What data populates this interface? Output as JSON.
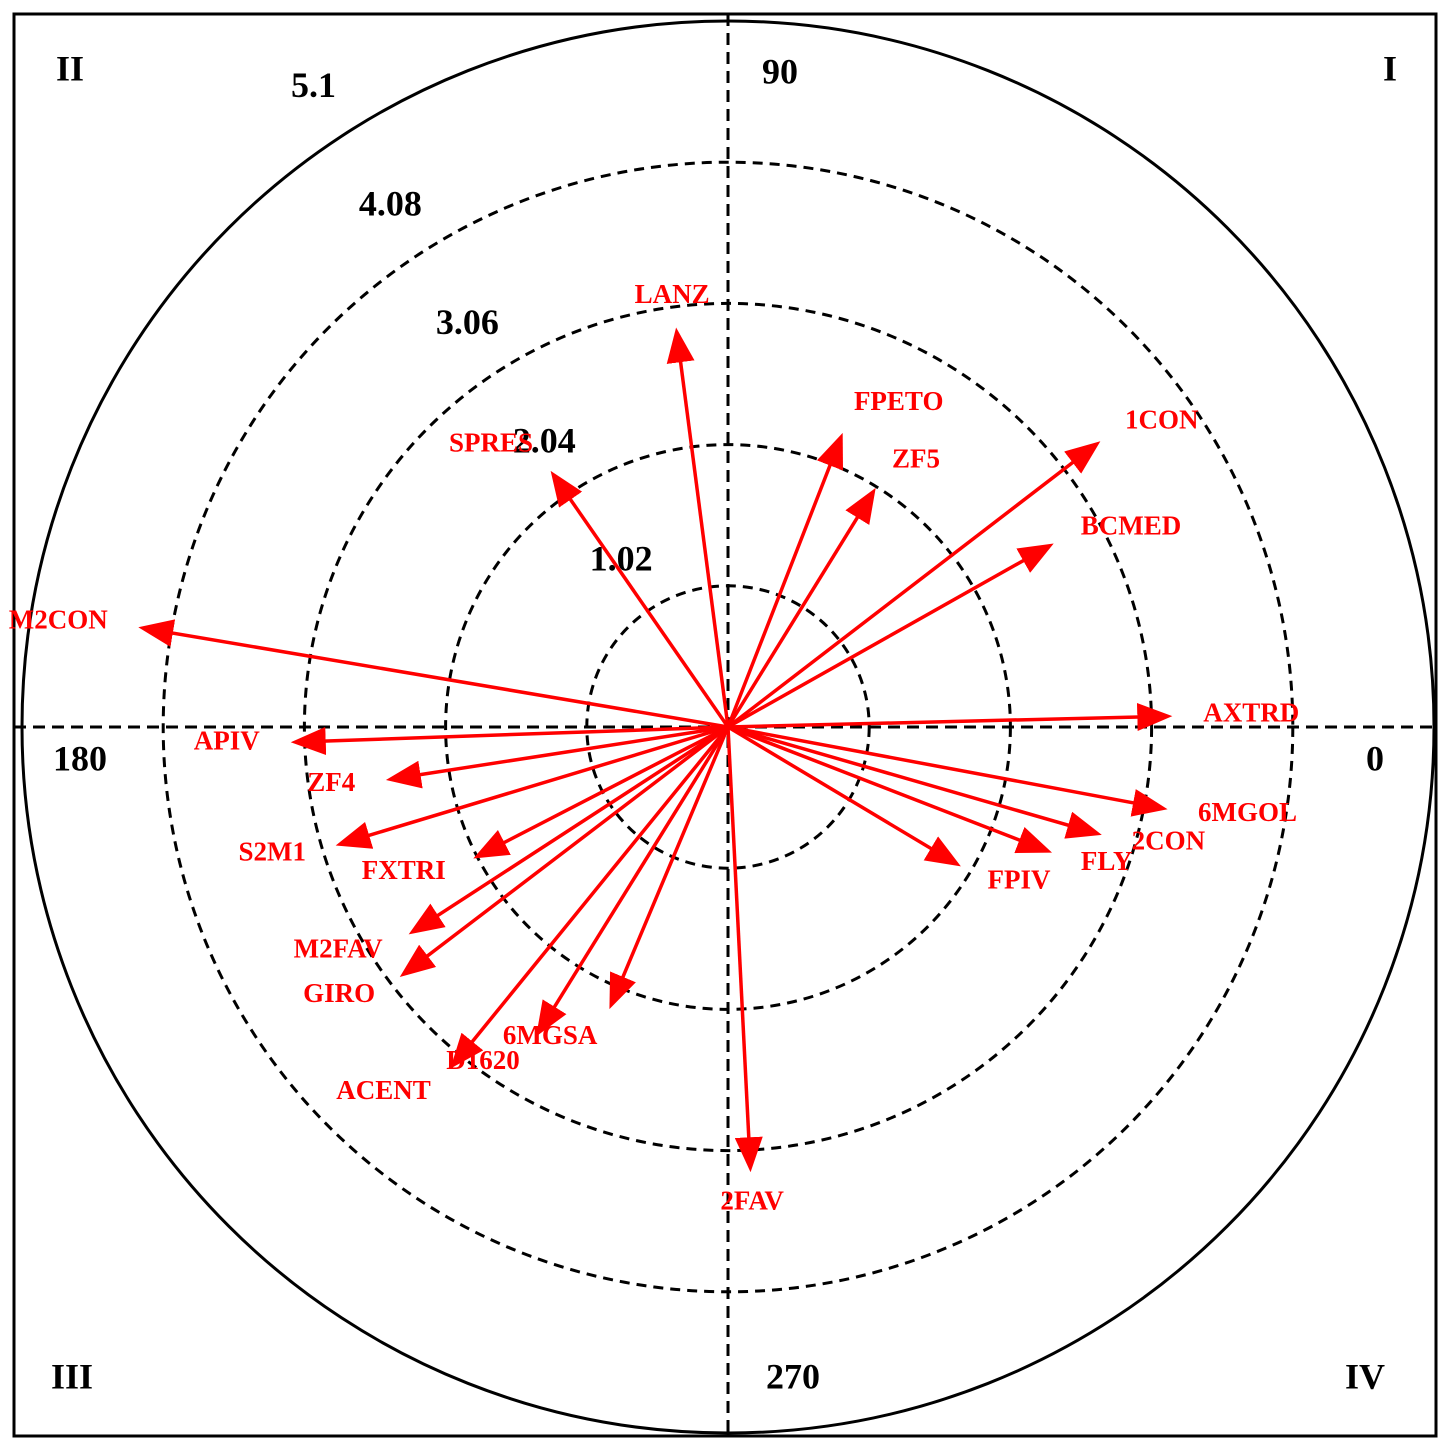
{
  "chart_data": {
    "type": "polar-vector",
    "categories": [
      "LANZ",
      "SPRES",
      "FPETO",
      "ZF5",
      "1CON",
      "BCMED",
      "AXTRD",
      "6MGOL",
      "2CON",
      "FLY",
      "FPIV",
      "2FAV",
      "6MGSA",
      "D1620",
      "ACENT",
      "GIRO",
      "M2FAV",
      "FXTRI",
      "S2M1",
      "ZF4",
      "APIV",
      "M2CON"
    ],
    "angles": [
      97.4,
      124.7,
      68.7,
      58.3,
      37.5,
      29.4,
      1.4,
      349.4,
      343.9,
      338.8,
      329.1,
      272.9,
      247.2,
      238.2,
      230.9,
      217.3,
      213.0,
      207.3,
      196.8,
      188.8,
      182.0,
      170.4
    ],
    "values": [
      2.86,
      2.2,
      2.23,
      1.98,
      3.34,
      2.65,
      3.16,
      3.18,
      2.76,
      2.46,
      1.91,
      3.17,
      2.16,
      2.58,
      3.13,
      2.93,
      2.7,
      2.02,
      2.91,
      2.45,
      3.11,
      4.27
    ],
    "color": "#ff0000",
    "rlim": [
      0,
      5.1
    ],
    "rticks": [
      1.02,
      2.04,
      3.06,
      4.08,
      5.1
    ],
    "thetaticks": [
      0,
      90,
      180,
      270
    ],
    "quadrant_labels": [
      "I",
      "II",
      "III",
      "IV"
    ]
  }
}
